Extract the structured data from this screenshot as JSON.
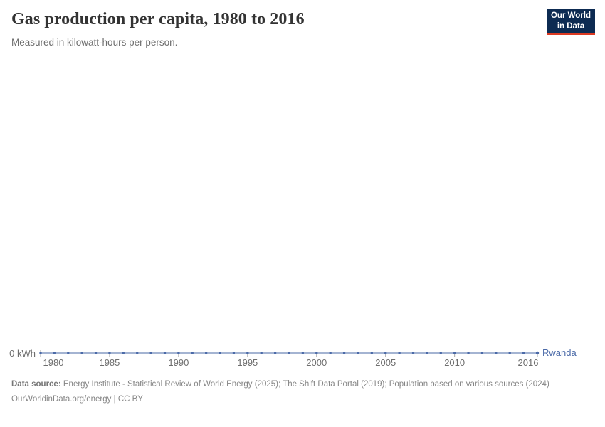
{
  "header": {
    "title": "Gas production per capita, 1980 to 2016",
    "subtitle": "Measured in kilowatt-hours per person.",
    "logo": {
      "line1": "Our World",
      "line2": "in Data"
    }
  },
  "chart_data": {
    "type": "line",
    "title": "Gas production per capita, 1980 to 2016",
    "subtitle": "Measured in kilowatt-hours per person.",
    "unit": "kilowatt-hours per person",
    "xlim": [
      1980,
      2016
    ],
    "ylim": [
      0,
      0
    ],
    "grid": false,
    "legend_position": "end-of-line",
    "y_axis_label": "0 kWh",
    "x_ticks": [
      1980,
      1985,
      1990,
      1995,
      2000,
      2005,
      2010,
      2016
    ],
    "x_tick_labels": [
      "1980",
      "1985",
      "1990",
      "1995",
      "2000",
      "2005",
      "2010",
      "2016"
    ],
    "series": [
      {
        "name": "Rwanda",
        "color": "#4b6aa8",
        "x": [
          1980,
          1981,
          1982,
          1983,
          1984,
          1985,
          1986,
          1987,
          1988,
          1989,
          1990,
          1991,
          1992,
          1993,
          1994,
          1995,
          1996,
          1997,
          1998,
          1999,
          2000,
          2001,
          2002,
          2003,
          2004,
          2005,
          2006,
          2007,
          2008,
          2009,
          2010,
          2011,
          2012,
          2013,
          2014,
          2015,
          2016
        ],
        "values": [
          0,
          0,
          0,
          0,
          0,
          0,
          0,
          0,
          0,
          0,
          0,
          0,
          0,
          0,
          0,
          0,
          0,
          0,
          0,
          0,
          0,
          0,
          0,
          0,
          0,
          0,
          0,
          0,
          0,
          0,
          0,
          0,
          0,
          0,
          0,
          0,
          0
        ]
      }
    ]
  },
  "footer": {
    "source_label": "Data source:",
    "source_text": "Energy Institute - Statistical Review of World Energy (2025); The Shift Data Portal (2019); Population based on various sources (2024)",
    "url": "OurWorldinData.org/energy",
    "divider": " | ",
    "license": "CC BY"
  },
  "colors": {
    "accent": "#4b6aa8",
    "line": "#6d88b8",
    "tick": "#a6a6a6",
    "logo_bg": "#0d2b52",
    "logo_stripe": "#dc3a22"
  }
}
